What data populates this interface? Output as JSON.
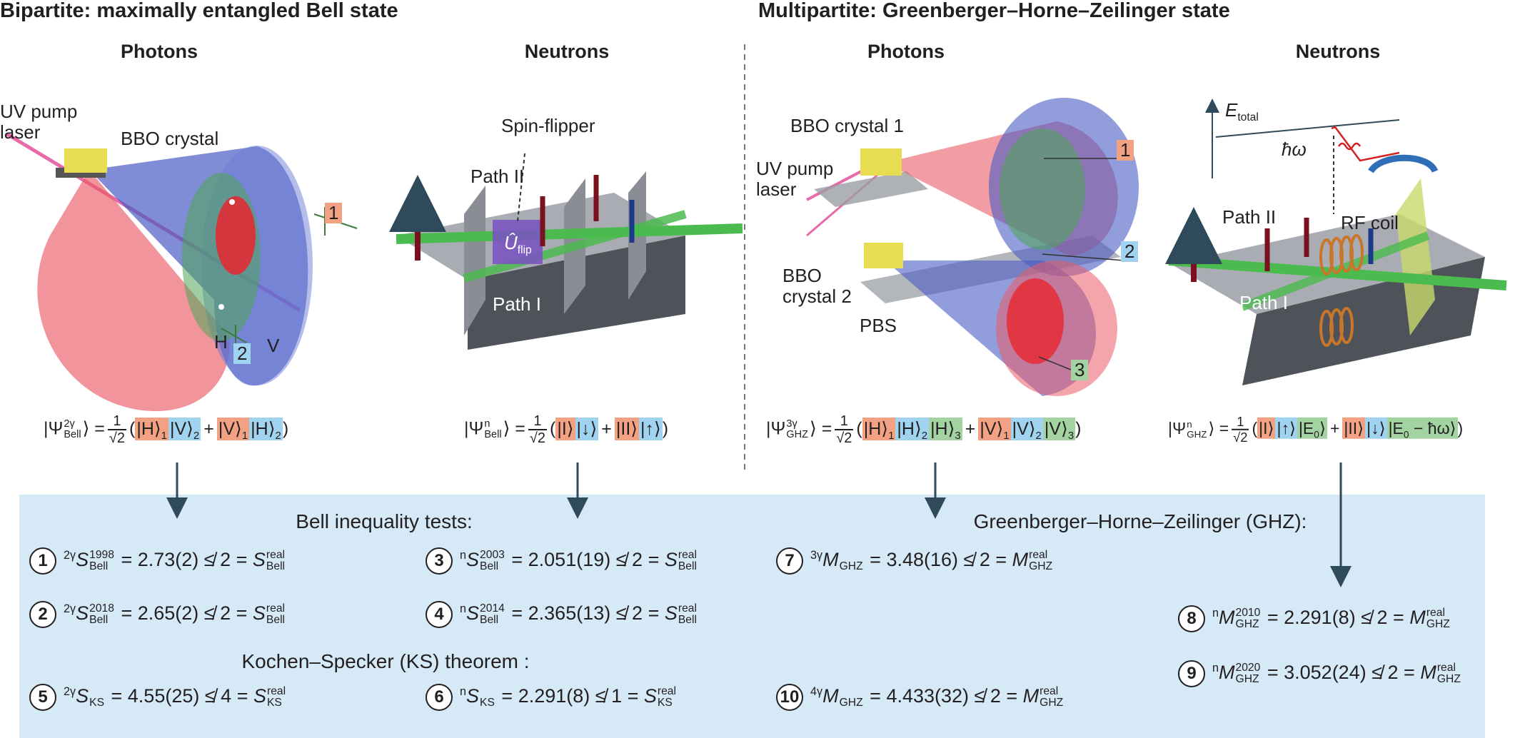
{
  "sections": [
    {
      "title": "Bipartite: maximally entangled Bell state",
      "panels": [
        {
          "heading": "Photons",
          "labels": {
            "laser": "UV pump laser",
            "crystal": "BBO crystal",
            "photon_1": "1",
            "h": "H",
            "photon_2": "2",
            "v": "V"
          },
          "state": {
            "lhs": "|Ψ",
            "lhs_sup": "2γ",
            "lhs_sub": "Bell",
            "lhs_close": "⟩ =",
            "num": "1",
            "den": "√2",
            "open": "(",
            "plus": "+",
            "close": ")",
            "terms": [
              [
                {
                  "ket": "|H⟩",
                  "sub": "1",
                  "color": "#f2a283"
                },
                {
                  "ket": "|V⟩",
                  "sub": "2",
                  "color": "#9fd3ef"
                }
              ],
              [
                {
                  "ket": "|V⟩",
                  "sub": "1",
                  "color": "#f2a283"
                },
                {
                  "ket": "|H⟩",
                  "sub": "2",
                  "color": "#9fd3ef"
                }
              ]
            ]
          }
        },
        {
          "heading": "Neutrons",
          "labels": {
            "spin_flipper": "Spin-flipper",
            "path_2": "Path II",
            "operator": "Û",
            "operator_sub": "flip",
            "path_1": "Path I"
          },
          "state": {
            "lhs": "|Ψ",
            "lhs_sup": "n",
            "lhs_sub": "Bell",
            "lhs_close": "⟩ =",
            "num": "1",
            "den": "√2",
            "open": "(",
            "plus": "+",
            "close": ")",
            "terms": [
              [
                {
                  "ket": "|I⟩",
                  "color": "#f2a283"
                },
                {
                  "ket": "|↓⟩",
                  "color": "#9fd3ef"
                }
              ],
              [
                {
                  "ket": "|II⟩",
                  "color": "#f2a283"
                },
                {
                  "ket": "|↑⟩",
                  "color": "#9fd3ef"
                }
              ]
            ]
          }
        }
      ]
    },
    {
      "title": "Multipartite: Greenberger–Horne–Zeilinger state",
      "panels": [
        {
          "heading": "Photons",
          "labels": {
            "crystal_1": "BBO crystal 1",
            "laser": "UV pump laser",
            "photon_1": "1",
            "photon_2": "2",
            "crystal_2": "BBO crystal 2",
            "pbs": "PBS",
            "photon_3": "3"
          },
          "state": {
            "lhs": "|Ψ",
            "lhs_sup": "3γ",
            "lhs_sub": "GHZ",
            "lhs_close": "⟩ =",
            "num": "1",
            "den": "√2",
            "open": "(",
            "plus": "+",
            "close": ")",
            "terms": [
              [
                {
                  "ket": "|H⟩",
                  "sub": "1",
                  "color": "#f2a283"
                },
                {
                  "ket": "|H⟩",
                  "sub": "2",
                  "color": "#9fd3ef"
                },
                {
                  "ket": "|H⟩",
                  "sub": "3",
                  "color": "#a3d3a0"
                }
              ],
              [
                {
                  "ket": "|V⟩",
                  "sub": "1",
                  "color": "#f2a283"
                },
                {
                  "ket": "|V⟩",
                  "sub": "2",
                  "color": "#9fd3ef"
                },
                {
                  "ket": "|V⟩",
                  "sub": "3",
                  "color": "#a3d3a0"
                }
              ]
            ]
          }
        },
        {
          "heading": "Neutrons",
          "labels": {
            "energy": "E",
            "energy_sub": "total",
            "quantum": "ħω",
            "path_2": "Path II",
            "rf_coil": "RF coil",
            "path_1": "Path I"
          },
          "state": {
            "lhs": "|Ψ",
            "lhs_sup": "n",
            "lhs_sub": "GHZ",
            "lhs_close": "⟩ =",
            "num": "1",
            "den": "√2",
            "open": "(",
            "plus": "+",
            "close": ")",
            "terms": [
              [
                {
                  "ket": "|I⟩",
                  "color": "#f2a283"
                },
                {
                  "ket": "|↑⟩",
                  "color": "#9fd3ef"
                },
                {
                  "ket": "|E",
                  "sub": "0",
                  "after": "⟩",
                  "color": "#a3d3a0"
                }
              ],
              [
                {
                  "ket": "|II⟩",
                  "color": "#f2a283"
                },
                {
                  "ket": "|↓⟩",
                  "color": "#9fd3ef"
                },
                {
                  "ket": "|E",
                  "sub": "0",
                  "after": " − ħω⟩",
                  "color": "#a3d3a0"
                }
              ]
            ]
          }
        }
      ]
    }
  ],
  "results": {
    "bell_heading": "Bell inequality tests:",
    "ks_heading": "Kochen–Specker (KS) theorem :",
    "ghz_heading": "Greenberger–Horne–Zeilinger (GHZ):",
    "items": [
      {
        "number": "1",
        "prefix": "2γ",
        "symbol": "S",
        "year": "1998",
        "subscript": "Bell",
        "relation": " = 2.73(2) ≰ 2 = ",
        "bound_symbol": "S",
        "bound_superscript": "real",
        "bound_subscript": "Bell"
      },
      {
        "number": "2",
        "prefix": "2γ",
        "symbol": "S",
        "year": "2018",
        "subscript": "Bell",
        "relation": " = 2.65(2) ≰ 2 = ",
        "bound_symbol": "S",
        "bound_superscript": "real",
        "bound_subscript": "Bell"
      },
      {
        "number": "3",
        "prefix": "n",
        "symbol": "S",
        "year": "2003",
        "subscript": "Bell",
        "relation": " = 2.051(19) ≰ 2 = ",
        "bound_symbol": "S",
        "bound_superscript": "real",
        "bound_subscript": "Bell"
      },
      {
        "number": "4",
        "prefix": "n",
        "symbol": "S",
        "year": "2014",
        "subscript": "Bell",
        "relation": " = 2.365(13) ≰ 2 = ",
        "bound_symbol": "S",
        "bound_superscript": "real",
        "bound_subscript": "Bell"
      },
      {
        "number": "5",
        "prefix": "2γ",
        "symbol": "S",
        "subscript": "KS",
        "relation": " = 4.55(25) ≰ 4 = ",
        "bound_symbol": "S",
        "bound_superscript": "real",
        "bound_subscript": "KS"
      },
      {
        "number": "6",
        "prefix": "n",
        "symbol": "S",
        "subscript": "KS",
        "relation": " = 2.291(8) ≰ 1 = ",
        "bound_symbol": "S",
        "bound_superscript": "real",
        "bound_subscript": "KS"
      },
      {
        "number": "7",
        "prefix": "3γ",
        "symbol": "M",
        "subscript": "GHZ",
        "relation": " = 3.48(16) ≰ 2 = ",
        "bound_symbol": "M",
        "bound_superscript": "real",
        "bound_subscript": "GHZ"
      },
      {
        "number": "8",
        "prefix": "n",
        "symbol": "M",
        "year": "2010",
        "subscript": "GHZ",
        "relation": " = 2.291(8) ≰ 2 = ",
        "bound_symbol": "M",
        "bound_superscript": "real",
        "bound_subscript": "GHZ"
      },
      {
        "number": "9",
        "prefix": "n",
        "symbol": "M",
        "year": "2020",
        "subscript": "GHZ",
        "relation": " = 3.052(24) ≰ 2 = ",
        "bound_symbol": "M",
        "bound_superscript": "real",
        "bound_subscript": "GHZ"
      },
      {
        "number": "10",
        "prefix": "4γ",
        "symbol": "M",
        "subscript": "GHZ",
        "relation": " = 4.433(32) ≰ 2 = ",
        "bound_symbol": "M",
        "bound_superscript": "real",
        "bound_subscript": "GHZ"
      }
    ]
  }
}
